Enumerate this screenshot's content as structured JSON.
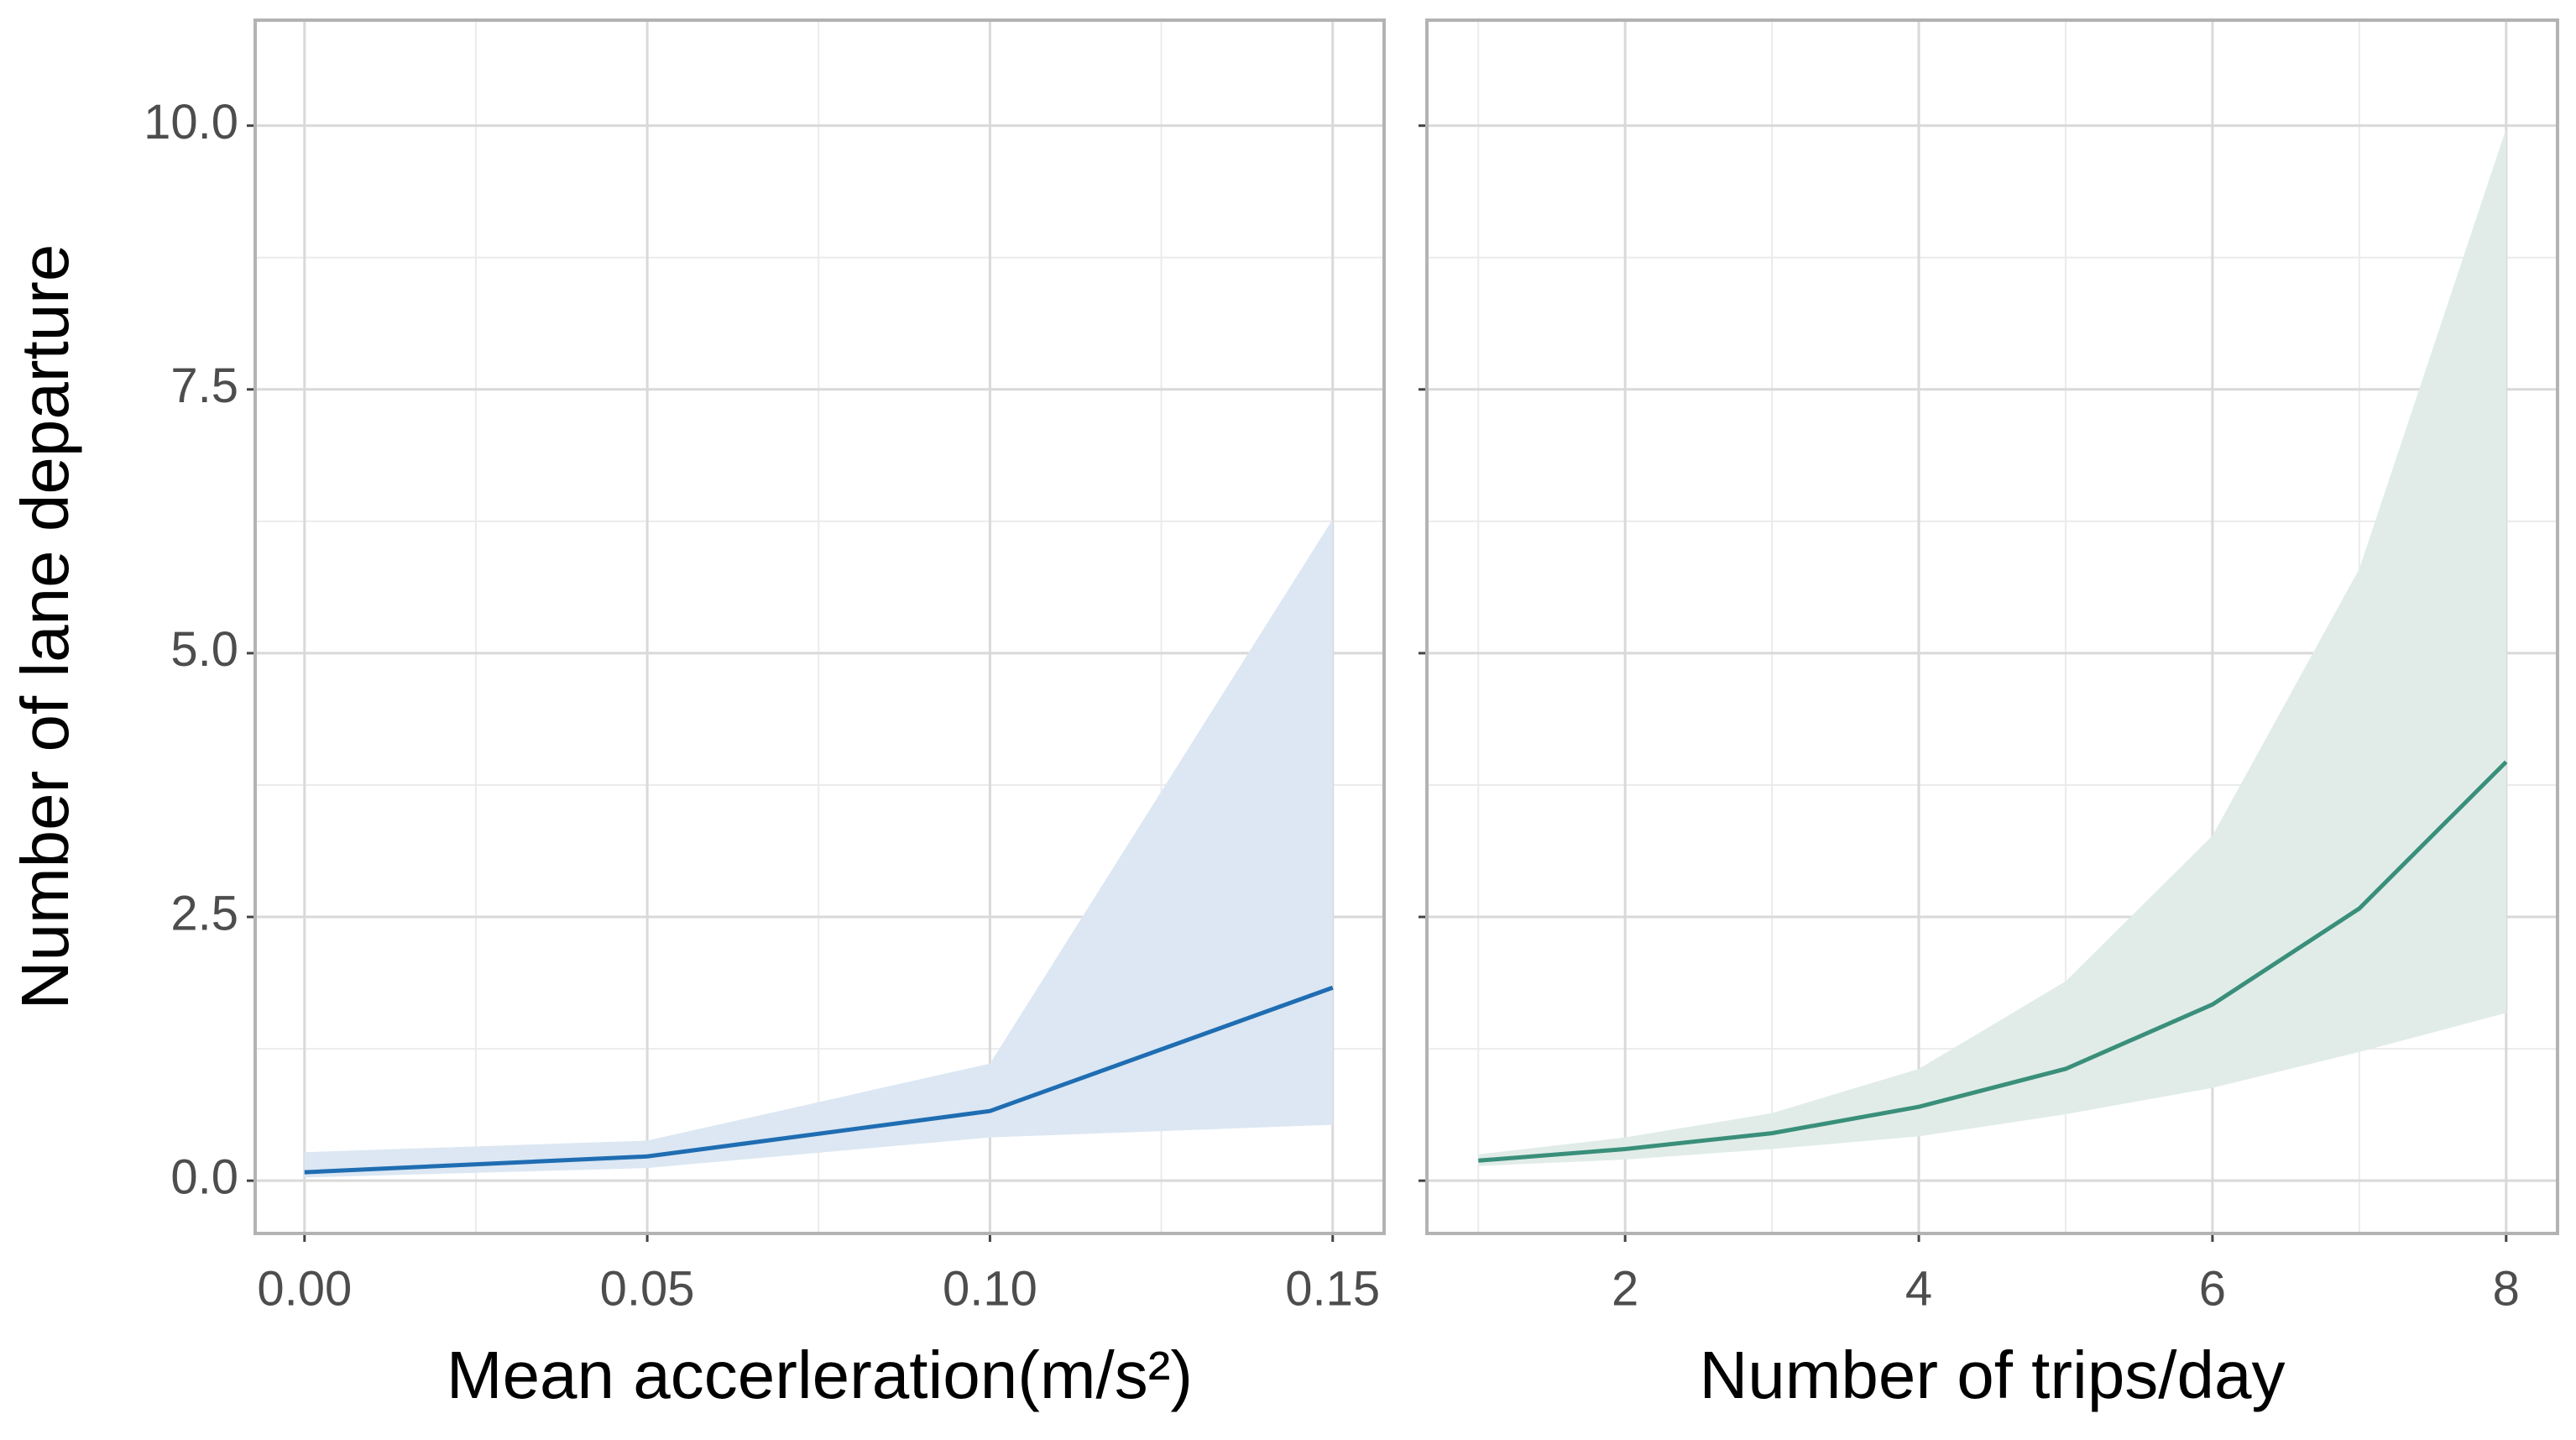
{
  "chart_data": [
    {
      "type": "line",
      "ylabel": "Number of lane departure",
      "xlabel": "Mean accerleration(m/s²)",
      "x": [
        0,
        0.05,
        0.1,
        0.15
      ],
      "values": [
        0.08,
        0.23,
        0.66,
        1.83
      ],
      "lower": [
        0.03,
        0.12,
        0.41,
        0.53
      ],
      "upper": [
        0.27,
        0.38,
        1.11,
        6.27
      ],
      "color": "#1f6db2",
      "band_color": "#dce7f3",
      "xlim": [
        -0.0072,
        0.1575
      ],
      "xticks": [
        {
          "value": 0,
          "label": "0.00"
        },
        0.05,
        {
          "value": 0.1,
          "label": "0.10"
        },
        0.15
      ],
      "minor_xticks": [
        0.025,
        0.075,
        0.125
      ],
      "ylim": [
        -0.5,
        11
      ],
      "yticks": [
        {
          "value": 0,
          "label": "0.0"
        },
        2.5,
        {
          "value": 5,
          "label": "5.0"
        },
        7.5,
        {
          "value": 10,
          "label": "10.0"
        }
      ],
      "minor_yticks": [
        1.25,
        3.75,
        6.25,
        8.75
      ],
      "grid": true
    },
    {
      "type": "line",
      "xlabel": "Number of trips/day",
      "x": [
        1,
        2,
        3,
        4,
        5,
        6,
        7,
        8
      ],
      "values": [
        0.19,
        0.3,
        0.45,
        0.7,
        1.06,
        1.67,
        2.58,
        3.97
      ],
      "lower": [
        0.14,
        0.2,
        0.3,
        0.42,
        0.63,
        0.88,
        1.22,
        1.59
      ],
      "upper": [
        0.25,
        0.41,
        0.64,
        1.06,
        1.89,
        3.27,
        5.8,
        9.97
      ],
      "color": "#3a8f7a",
      "band_color": "#e1ece8",
      "xlim": [
        0.65,
        8.35
      ],
      "xticks": [
        2,
        4,
        6,
        8
      ],
      "minor_xticks": [
        1,
        3,
        5,
        7
      ],
      "ylim": [
        -0.5,
        11
      ],
      "yticks": [
        0,
        2.5,
        5,
        7.5,
        10
      ],
      "minor_yticks": [
        1.25,
        3.75,
        6.25,
        8.75
      ],
      "grid": true,
      "hide_ytick_labels": true
    }
  ]
}
